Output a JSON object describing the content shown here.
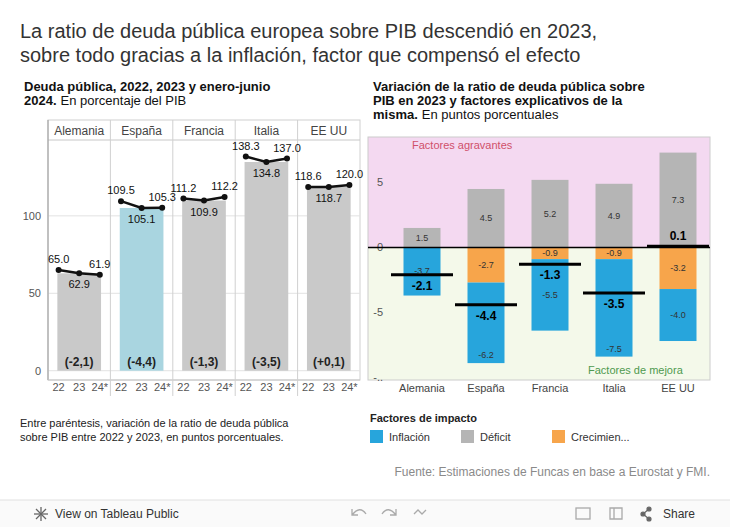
{
  "header": {
    "title": [
      "La ratio de deuda pública europea sobre PIB descendió en 2023,",
      "sobre todo gracias a la inflación, factor que compensó el efecto"
    ]
  },
  "chart_data": [
    {
      "type": "bar",
      "title": [
        "Deuda pública, 2022, 2023 y enero-junio",
        "2024."
      ],
      "subtitle": "En porcentaje del PIB",
      "categories": [
        "22",
        "23",
        "24*"
      ],
      "panels": [
        {
          "name": "Alemania",
          "values": [
            65.0,
            62.9,
            61.9
          ],
          "value_labels": [
            "65.0",
            "62.9",
            "61.9"
          ],
          "change_label": "(-2,1)"
        },
        {
          "name": "España",
          "values": [
            109.5,
            105.1,
            105.3
          ],
          "value_labels": [
            "109.5",
            "105.1",
            "105.3"
          ],
          "change_label": "(-4,4)"
        },
        {
          "name": "Francia",
          "values": [
            111.2,
            109.9,
            112.2
          ],
          "value_labels": [
            "111.2",
            "109.9",
            "112.2"
          ],
          "change_label": "(-1,3)"
        },
        {
          "name": "Italia",
          "values": [
            138.3,
            134.8,
            137.0
          ],
          "value_labels": [
            "138.3",
            "134.8",
            "137.0"
          ],
          "change_label": "(-3,5)"
        },
        {
          "name": "EE UU",
          "values": [
            118.6,
            118.7,
            120.0
          ],
          "value_labels": [
            "118.6",
            "118.7",
            "120.0"
          ],
          "change_label": "(+0,1)"
        }
      ],
      "colors": [
        "#c9c9c9",
        "#a9d5e0",
        "#c9c9c9",
        "#c9c9c9",
        "#c9c9c9"
      ],
      "color": "#111111",
      "marker": "circle",
      "line_style": "solid",
      "ylim": [
        -6,
        149
      ],
      "yticks": [
        0,
        50,
        100
      ],
      "grid": true,
      "data_labels": true,
      "note": [
        "Entre paréntesis, variación de la ratio de deuda pública",
        "sobre PIB entre 2022 y 2023, en puntos porcentuales."
      ]
    },
    {
      "type": "bar",
      "stacked": true,
      "title": [
        "Variación de la ratio de deuda pública sobre",
        "PIB en 2023 y factores explicativos de la",
        "misma."
      ],
      "subtitle": "En puntos porcentuales",
      "categories": [
        "Alemania",
        "España",
        "Francia",
        "Italia",
        "EE UU"
      ],
      "series": [
        {
          "name": "Inflación",
          "color": "#27a5dc",
          "values": [
            -3.7,
            -6.2,
            -5.5,
            -7.5,
            -4.0
          ],
          "value_labels": [
            "-3.7",
            "-6.2",
            "-5.5",
            "-7.5",
            "-4.0"
          ]
        },
        {
          "name": "Déficit",
          "color": "#b5b5b5",
          "values": [
            1.5,
            4.5,
            5.2,
            4.9,
            7.3
          ],
          "value_labels": [
            "1.5",
            "4.5",
            "5.2",
            "4.9",
            "7.3"
          ]
        },
        {
          "name": "Crecimien...",
          "color": "#f7a54b",
          "values": [
            null,
            -2.7,
            -0.9,
            -0.9,
            -3.2
          ],
          "value_labels": [
            null,
            "-2.7",
            "-0.9",
            "-0.9",
            "-3.2"
          ]
        }
      ],
      "totals": [
        -2.1,
        -4.4,
        -1.3,
        -3.5,
        0.1
      ],
      "total_labels": [
        "-2.1",
        "-4.4",
        "-1.3",
        "-3.5",
        "0.1"
      ],
      "ylim": [
        -10.2,
        8.5
      ],
      "yticks": [
        5,
        0,
        -5,
        {
          "value": -10,
          "label": "-.."
        }
      ],
      "grid": false,
      "data_labels": true,
      "legend": "bottom",
      "legend_title": "Factores de impacto",
      "annotations": [
        "Factores agravantes",
        "Factores de mejora"
      ]
    }
  ],
  "source": "Fuente: Estimaciones de Funcas en base a Eurostat y FMI.",
  "footer": {
    "link": "View on Tableau Public",
    "share": "Share"
  }
}
